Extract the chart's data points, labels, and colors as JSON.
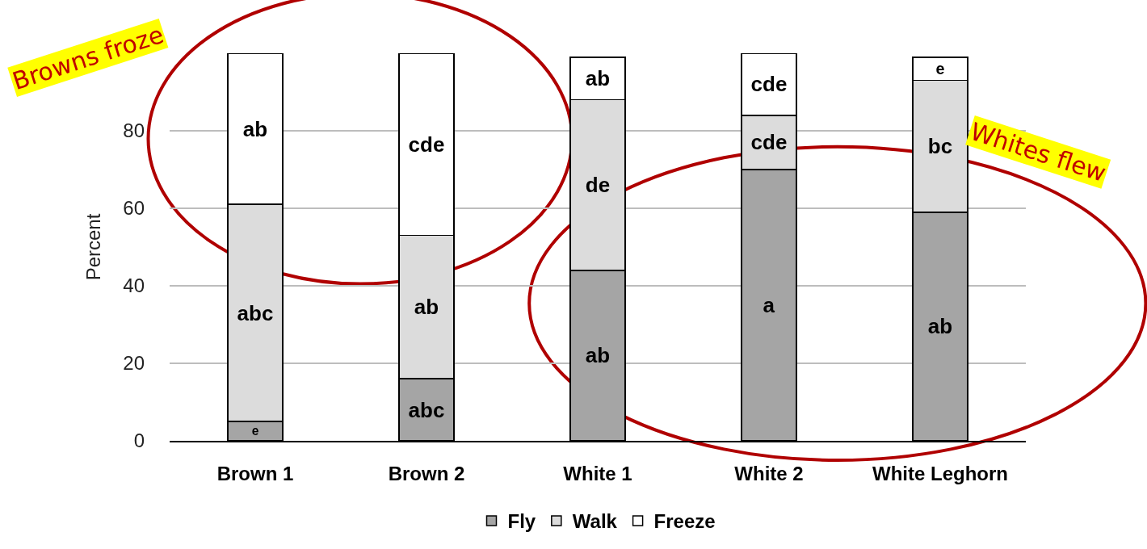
{
  "chart_data": {
    "type": "bar",
    "stacked": true,
    "ylabel": "Percent",
    "categories": [
      "Brown 1",
      "Brown 2",
      "White 1",
      "White 2",
      "White Leghorn"
    ],
    "series": [
      {
        "name": "Fly",
        "color": "#a5a5a5",
        "values": [
          5,
          16,
          44,
          70,
          59
        ],
        "value_labels": [
          "e",
          "abc",
          "ab",
          "a",
          "ab"
        ]
      },
      {
        "name": "Walk",
        "color": "#dcdcdc",
        "values": [
          56,
          37,
          44,
          14,
          34
        ],
        "value_labels": [
          "abc",
          "ab",
          "de",
          "cde",
          "bc"
        ]
      },
      {
        "name": "Freeze",
        "color": "#ffffff",
        "values": [
          39,
          47,
          11,
          16,
          6
        ],
        "value_labels": [
          "ab",
          "cde",
          "ab",
          "cde",
          "e"
        ]
      }
    ],
    "ylim": [
      0,
      100
    ],
    "yticks": [
      0,
      20,
      40,
      60,
      80
    ],
    "grid": "y",
    "legend": "bottom",
    "annotations": [
      "Browns froze",
      "Whites flew"
    ]
  }
}
